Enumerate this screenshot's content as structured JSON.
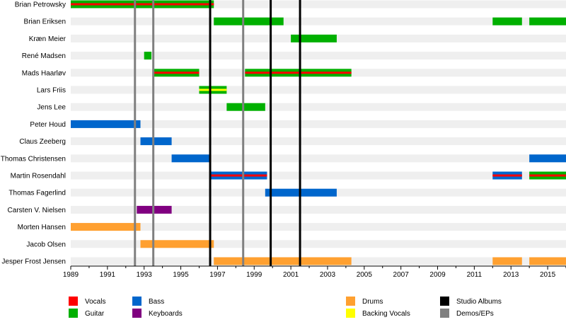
{
  "chart_data": {
    "type": "timeline",
    "title": "",
    "xlabel": "",
    "ylabel": "",
    "xlim": [
      1989,
      2016
    ],
    "xticks": [
      1989,
      1991,
      1993,
      1995,
      1997,
      1999,
      2001,
      2003,
      2005,
      2007,
      2009,
      2011,
      2013,
      2015
    ],
    "members": [
      "Brian Petrowsky",
      "Brian Eriksen",
      "Kræn Meier",
      "René Madsen",
      "Mads Haarløv",
      "Lars Friis",
      "Jens Lee",
      "Peter Houd",
      "Claus Zeeberg",
      "Thomas Christensen",
      "Martin Rosendahl",
      "Thomas Fagerlind",
      "Carsten V. Nielsen",
      "Morten Hansen",
      "Jacob Olsen",
      "Jesper Frost Jensen"
    ],
    "roles": {
      "vocals": {
        "label": "Vocals",
        "color": "#ff0000"
      },
      "guitar": {
        "label": "Guitar",
        "color": "#00b000"
      },
      "bass": {
        "label": "Bass",
        "color": "#0066cc"
      },
      "keyboards": {
        "label": "Keyboards",
        "color": "#800080"
      },
      "drums": {
        "label": "Drums",
        "color": "#ffa030"
      },
      "backing_vocals": {
        "label": "Backing Vocals",
        "color": "#ffff00"
      },
      "studio_albums": {
        "label": "Studio Albums",
        "color": "#000000"
      },
      "demos_eps": {
        "label": "Demos/EPs",
        "color": "#808080"
      }
    },
    "bars": [
      {
        "member": "Brian Petrowsky",
        "role": "guitar",
        "start": 1989.0,
        "end": 1996.8,
        "overlay": "vocals"
      },
      {
        "member": "Brian Eriksen",
        "role": "guitar",
        "start": 1996.8,
        "end": 2000.6
      },
      {
        "member": "Brian Eriksen",
        "role": "guitar",
        "start": 2012.0,
        "end": 2013.6
      },
      {
        "member": "Brian Eriksen",
        "role": "guitar",
        "start": 2014.0,
        "end": 2016.0
      },
      {
        "member": "Kræn Meier",
        "role": "guitar",
        "start": 2001.0,
        "end": 2003.5
      },
      {
        "member": "René Madsen",
        "role": "guitar",
        "start": 1993.0,
        "end": 1993.4
      },
      {
        "member": "Mads Haarløv",
        "role": "guitar",
        "start": 1993.5,
        "end": 1996.0,
        "overlay": "vocals"
      },
      {
        "member": "Mads Haarløv",
        "role": "guitar",
        "start": 1998.5,
        "end": 2004.3,
        "overlay": "vocals"
      },
      {
        "member": "Lars Friis",
        "role": "guitar",
        "start": 1996.0,
        "end": 1997.5,
        "overlay": "backing_vocals"
      },
      {
        "member": "Jens Lee",
        "role": "guitar",
        "start": 1997.5,
        "end": 1999.6
      },
      {
        "member": "Peter Houd",
        "role": "bass",
        "start": 1989.0,
        "end": 1992.8
      },
      {
        "member": "Claus Zeeberg",
        "role": "bass",
        "start": 1992.8,
        "end": 1994.5
      },
      {
        "member": "Thomas Christensen",
        "role": "bass",
        "start": 1994.5,
        "end": 1996.6
      },
      {
        "member": "Thomas Christensen",
        "role": "bass",
        "start": 2014.0,
        "end": 2016.0
      },
      {
        "member": "Martin Rosendahl",
        "role": "bass",
        "start": 1996.6,
        "end": 1999.7,
        "overlay": "vocals"
      },
      {
        "member": "Martin Rosendahl",
        "role": "bass",
        "start": 2012.0,
        "end": 2013.6,
        "overlay": "vocals"
      },
      {
        "member": "Martin Rosendahl",
        "role": "guitar",
        "start": 2014.0,
        "end": 2016.0,
        "overlay": "vocals"
      },
      {
        "member": "Thomas Fagerlind",
        "role": "bass",
        "start": 1999.6,
        "end": 2003.5
      },
      {
        "member": "Carsten V. Nielsen",
        "role": "keyboards",
        "start": 1992.6,
        "end": 1994.5
      },
      {
        "member": "Morten Hansen",
        "role": "drums",
        "start": 1989.0,
        "end": 1992.8
      },
      {
        "member": "Jacob Olsen",
        "role": "drums",
        "start": 1992.8,
        "end": 1996.8
      },
      {
        "member": "Jesper Frost Jensen",
        "role": "drums",
        "start": 1996.8,
        "end": 2004.3
      },
      {
        "member": "Jesper Frost Jensen",
        "role": "drums",
        "start": 2012.0,
        "end": 2013.6
      },
      {
        "member": "Jesper Frost Jensen",
        "role": "drums",
        "start": 2014.0,
        "end": 2016.0
      }
    ],
    "events": [
      {
        "type": "demos_eps",
        "year": 1992.5
      },
      {
        "type": "demos_eps",
        "year": 1993.5
      },
      {
        "type": "demos_eps",
        "year": 1998.4
      },
      {
        "type": "studio_albums",
        "year": 1996.6
      },
      {
        "type": "studio_albums",
        "year": 1999.9
      },
      {
        "type": "studio_albums",
        "year": 2001.5
      }
    ],
    "legend": {
      "placement": "bottom",
      "columns": [
        [
          "vocals",
          "guitar"
        ],
        [
          "bass",
          "keyboards"
        ],
        [
          "drums",
          "backing_vocals"
        ],
        [
          "studio_albums",
          "demos_eps"
        ]
      ]
    },
    "grid": "alternating-row-bands"
  }
}
